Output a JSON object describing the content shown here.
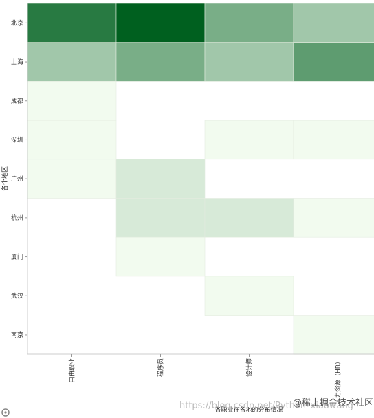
{
  "chart_data": {
    "type": "heatmap",
    "xlabel": "各职业在各地的分布情况",
    "ylabel": "各个地区",
    "x_categories": [
      "自由职业",
      "程序员",
      "设计师",
      "人力资源（HR）"
    ],
    "y_categories": [
      "北京",
      "上海",
      "成都",
      "深圳",
      "广州",
      "杭州",
      "厦门",
      "武汉",
      "南京"
    ],
    "cells": [
      {
        "x": "自由职业",
        "y": "北京",
        "value": 85
      },
      {
        "x": "程序员",
        "y": "北京",
        "value": 100
      },
      {
        "x": "设计师",
        "y": "北京",
        "value": 55
      },
      {
        "x": "人力资源（HR）",
        "y": "北京",
        "value": 40
      },
      {
        "x": "自由职业",
        "y": "上海",
        "value": 40
      },
      {
        "x": "程序员",
        "y": "上海",
        "value": 55
      },
      {
        "x": "设计师",
        "y": "上海",
        "value": 40
      },
      {
        "x": "人力资源（HR）",
        "y": "上海",
        "value": 65
      },
      {
        "x": "自由职业",
        "y": "成都",
        "value": 10
      },
      {
        "x": "自由职业",
        "y": "深圳",
        "value": 10
      },
      {
        "x": "设计师",
        "y": "深圳",
        "value": 10
      },
      {
        "x": "人力资源（HR）",
        "y": "深圳",
        "value": 10
      },
      {
        "x": "自由职业",
        "y": "广州",
        "value": 10
      },
      {
        "x": "程序员",
        "y": "广州",
        "value": 20
      },
      {
        "x": "程序员",
        "y": "杭州",
        "value": 20
      },
      {
        "x": "设计师",
        "y": "杭州",
        "value": 20
      },
      {
        "x": "人力资源（HR）",
        "y": "杭州",
        "value": 10
      },
      {
        "x": "程序员",
        "y": "厦门",
        "value": 10
      },
      {
        "x": "设计师",
        "y": "武汉",
        "value": 10
      },
      {
        "x": "人力资源（HR）",
        "y": "南京",
        "value": 10
      }
    ],
    "color_scale": "greens",
    "grid": false,
    "legend": "none"
  },
  "watermark": {
    "text": "@稀土掘金技术社区",
    "url": "https://blog.csdn.net/Python_xiaowang"
  },
  "colors": {
    "min": "#f2fbef",
    "max": "#00601f",
    "axis": "#cccccc"
  },
  "icons": [
    "settings-icon"
  ]
}
